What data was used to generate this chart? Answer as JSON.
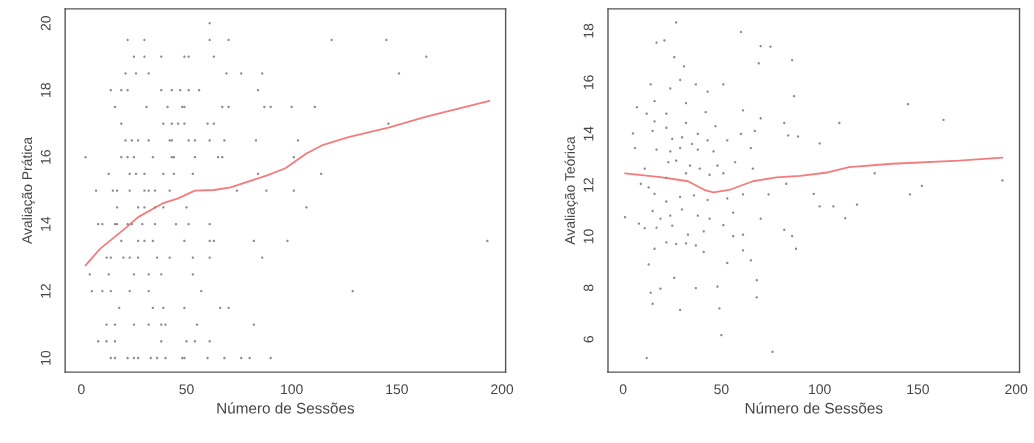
{
  "chart_data": [
    {
      "type": "scatter",
      "xlabel": "Número de Sessões",
      "ylabel": "Avaliação Prática",
      "xlim": [
        -7.7,
        201.7
      ],
      "ylim": [
        9.58,
        20.43
      ],
      "xticks": [
        0,
        50,
        100,
        150,
        200
      ],
      "yticks": [
        10,
        12,
        14,
        16,
        18,
        20
      ],
      "grid": false,
      "series": [
        {
          "marker": "circle",
          "color": "#8c8c8c",
          "x": [
            61,
            22,
            30,
            61,
            70,
            119,
            145,
            25,
            30,
            38,
            49,
            51,
            63,
            164,
            21,
            26,
            32,
            69,
            76,
            86,
            151,
            14,
            19,
            22,
            38,
            43,
            47,
            51,
            56,
            84,
            16,
            31,
            41,
            48,
            49,
            67,
            70,
            87,
            90,
            100,
            111,
            19,
            39,
            43,
            46,
            49,
            60,
            63,
            146,
            21,
            24,
            27,
            32,
            42,
            43,
            51,
            54,
            61,
            68,
            83,
            103,
            2,
            19,
            22,
            25,
            34,
            43,
            44,
            54,
            65,
            67,
            101,
            13,
            23,
            26,
            30,
            39,
            44,
            53,
            84,
            114,
            7,
            15,
            17,
            23,
            30,
            32,
            35,
            42,
            74,
            88,
            101,
            17,
            27,
            30,
            35,
            39,
            50,
            107,
            8,
            10,
            16,
            17,
            22,
            24,
            29,
            35,
            45,
            51,
            61,
            19,
            27,
            30,
            34,
            49,
            61,
            63,
            82,
            98,
            193,
            12,
            14,
            20,
            23,
            27,
            36,
            42,
            53,
            61,
            86,
            4,
            13,
            25,
            32,
            38,
            53,
            5,
            10,
            14,
            23,
            32,
            57,
            129,
            18,
            34,
            39,
            49,
            66,
            70,
            12,
            16,
            25,
            32,
            38,
            40,
            55,
            82,
            8,
            12,
            16,
            38,
            50,
            54,
            61,
            14,
            16,
            22,
            25,
            27,
            33,
            36,
            40,
            48,
            49,
            60,
            68,
            76,
            80,
            90
          ],
          "values": [
            20,
            19.5,
            19.5,
            19.5,
            19.5,
            19.5,
            19.5,
            19,
            19,
            19,
            19,
            19,
            19,
            19,
            18.5,
            18.5,
            18.5,
            18.5,
            18.5,
            18.5,
            18.5,
            18,
            18,
            18,
            18,
            18,
            18,
            18,
            18,
            18,
            17.5,
            17.5,
            17.5,
            17.5,
            17.5,
            17.5,
            17.5,
            17.5,
            17.5,
            17.5,
            17.5,
            17,
            17,
            17,
            17,
            17,
            17,
            17,
            17,
            16.5,
            16.5,
            16.5,
            16.5,
            16.5,
            16.5,
            16.5,
            16.5,
            16.5,
            16.5,
            16.5,
            16.5,
            16,
            16,
            16,
            16,
            16,
            16,
            16,
            16,
            16,
            16,
            16,
            15.5,
            15.5,
            15.5,
            15.5,
            15.5,
            15.5,
            15.5,
            15.5,
            15.5,
            15,
            15,
            15,
            15,
            15,
            15,
            15,
            15,
            15,
            15,
            15,
            14.5,
            14.5,
            14.5,
            14.5,
            14.5,
            14.5,
            14.5,
            14,
            14,
            14,
            14,
            14,
            14,
            14,
            14,
            14,
            14,
            14,
            13.5,
            13.5,
            13.5,
            13.5,
            13.5,
            13.5,
            13.5,
            13.5,
            13.5,
            13.5,
            13,
            13,
            13,
            13,
            13,
            13,
            13,
            13,
            13,
            13,
            12.5,
            12.5,
            12.5,
            12.5,
            12.5,
            12.5,
            12,
            12,
            12,
            12,
            12,
            12,
            12,
            11.5,
            11.5,
            11.5,
            11.5,
            11.5,
            11.5,
            11,
            11,
            11,
            11,
            11,
            11,
            11,
            11,
            10.5,
            10.5,
            10.5,
            10.5,
            10.5,
            10.5,
            10.5,
            10,
            10,
            10,
            10,
            10,
            10,
            10,
            10,
            10,
            10,
            10,
            10,
            10,
            10,
            10
          ]
        },
        {
          "type": "line",
          "marker": "none",
          "line_style": "solid",
          "color": "#f47c7c",
          "x": [
            2,
            9,
            21,
            27,
            39,
            46,
            54,
            63,
            71,
            88,
            97,
            107,
            115,
            127,
            146,
            164,
            194
          ],
          "values": [
            12.77,
            13.27,
            13.88,
            14.21,
            14.63,
            14.77,
            15.0,
            15.02,
            15.1,
            15.45,
            15.67,
            16.11,
            16.37,
            16.6,
            16.88,
            17.21,
            17.68
          ]
        }
      ]
    },
    {
      "type": "scatter",
      "xlabel": "Número de Sessões",
      "ylabel": "Avaliação Teórica",
      "xlim": [
        -7.7,
        201.7
      ],
      "ylim": [
        4.72,
        18.86
      ],
      "xticks": [
        0,
        50,
        100,
        150,
        200
      ],
      "yticks": [
        6,
        8,
        10,
        12,
        14,
        16,
        18
      ],
      "grid": false,
      "series": [
        {
          "marker": "circle",
          "color": "#8c8c8c",
          "x": [
            27,
            17,
            21,
            60,
            70,
            75,
            86,
            26,
            31,
            69,
            29,
            14,
            37,
            51,
            87,
            24,
            7,
            16,
            32,
            43,
            61,
            145,
            12,
            22,
            16,
            32,
            42,
            70,
            82,
            110,
            163,
            5,
            15,
            22,
            38,
            47,
            60,
            67,
            84,
            89,
            25,
            30,
            35,
            43,
            53,
            6,
            17,
            24,
            29,
            38,
            46,
            65,
            100,
            11,
            23,
            27,
            34,
            39,
            48,
            57,
            66,
            9,
            13,
            22,
            32,
            44,
            51,
            83,
            128,
            152,
            193,
            16,
            22,
            29,
            36,
            43,
            53,
            61,
            74,
            97,
            146,
            1,
            15,
            19,
            24,
            30,
            38,
            44,
            56,
            70,
            100,
            107,
            119,
            113,
            8,
            11,
            17,
            25,
            33,
            41,
            51,
            56,
            61,
            82,
            86,
            22,
            27,
            32,
            37,
            41,
            61,
            88,
            16,
            53,
            65,
            13,
            26,
            68,
            19,
            37,
            48,
            14,
            68,
            15,
            29,
            49,
            50,
            76,
            12
          ],
          "values": [
            18.33,
            17.54,
            17.63,
            17.96,
            17.41,
            17.39,
            16.86,
            16.98,
            16.62,
            16.74,
            16.09,
            15.92,
            15.92,
            15.92,
            15.46,
            15.76,
            15.03,
            15.27,
            15.19,
            15.64,
            14.91,
            15.15,
            14.78,
            14.78,
            14.48,
            14.42,
            14.84,
            14.6,
            14.42,
            14.42,
            14.54,
            14.01,
            14.11,
            14.23,
            13.99,
            14.29,
            13.99,
            14.11,
            13.93,
            13.89,
            13.8,
            13.86,
            13.6,
            13.74,
            13.74,
            13.44,
            13.38,
            13.31,
            13.44,
            13.38,
            13.31,
            13.44,
            13.62,
            12.64,
            12.89,
            12.95,
            12.76,
            12.64,
            12.76,
            12.89,
            12.64,
            12.05,
            11.91,
            12.28,
            12.46,
            12.4,
            12.46,
            12.05,
            12.46,
            11.97,
            12.18,
            11.66,
            11.36,
            11.54,
            11.6,
            11.42,
            11.48,
            11.64,
            11.64,
            11.66,
            11.64,
            10.75,
            10.99,
            10.69,
            10.81,
            11.05,
            10.81,
            10.69,
            10.93,
            10.69,
            11.17,
            11.17,
            11.24,
            10.71,
            10.5,
            10.32,
            10.34,
            10.42,
            10.07,
            10.2,
            10.44,
            10.01,
            10.07,
            10.26,
            10.01,
            9.77,
            9.71,
            9.73,
            9.65,
            9.4,
            9.46,
            9.52,
            9.52,
            8.97,
            9.07,
            8.91,
            8.39,
            8.3,
            7.97,
            7.99,
            8.05,
            7.81,
            7.63,
            7.38,
            7.14,
            7.2,
            6.16,
            5.51,
            5.27
          ]
        },
        {
          "type": "line",
          "marker": "none",
          "line_style": "solid",
          "color": "#f47c7c",
          "x": [
            1,
            19,
            33,
            42,
            46,
            54,
            66,
            78,
            90,
            103,
            115,
            137,
            171,
            193
          ],
          "values": [
            12.46,
            12.31,
            12.15,
            11.79,
            11.72,
            11.81,
            12.15,
            12.3,
            12.36,
            12.48,
            12.7,
            12.83,
            12.95,
            13.07
          ]
        }
      ]
    }
  ]
}
